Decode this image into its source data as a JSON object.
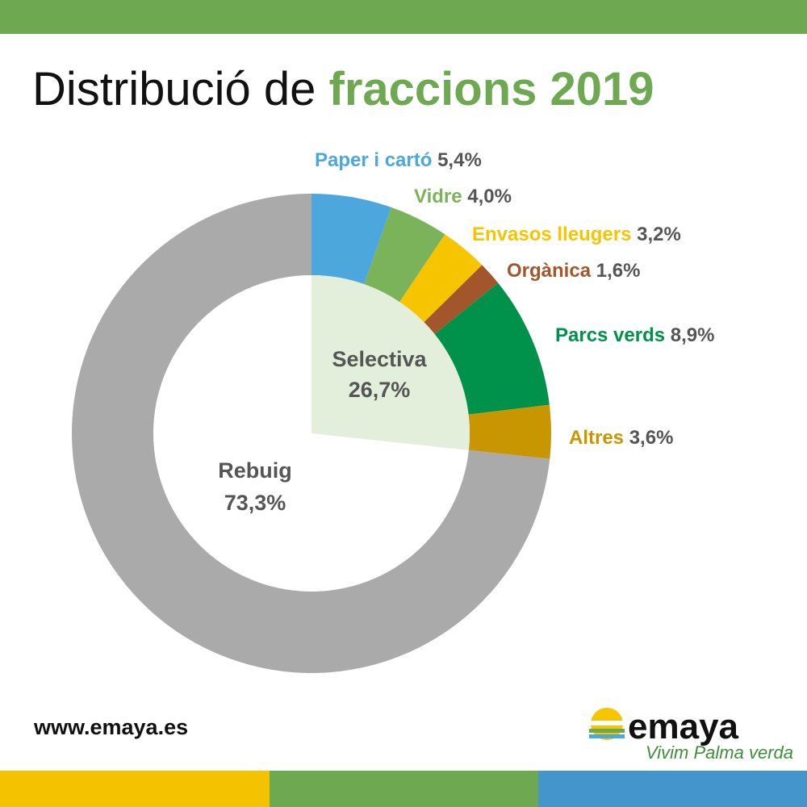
{
  "chart_data": {
    "type": "donut",
    "title": [
      "Distribució de",
      "fraccions 2019"
    ],
    "categories": [
      "Paper i cartó",
      "Vidre",
      "Envasos lleugers",
      "Orgànica",
      "Parcs verds",
      "Altres",
      "Rebuig"
    ],
    "values": [
      5.4,
      4.0,
      3.2,
      1.6,
      8.9,
      3.6,
      73.3
    ],
    "value_labels": [
      "5,4%",
      "4,0%",
      "3,2%",
      "1,6%",
      "8,9%",
      "3,6%",
      "73,3%"
    ],
    "colors": [
      "#4ba7dc",
      "#7bb35b",
      "#f6c500",
      "#a3562c",
      "#00924b",
      "#c89600",
      "#aaaaaa"
    ],
    "group": {
      "name": "Selectiva",
      "value": 26.7,
      "value_label": "26,7%",
      "color": "#e3efda"
    }
  },
  "footer": {
    "url": "www.emaya.es",
    "logo": "emaya",
    "slogan": "Vivim Palma verda"
  }
}
